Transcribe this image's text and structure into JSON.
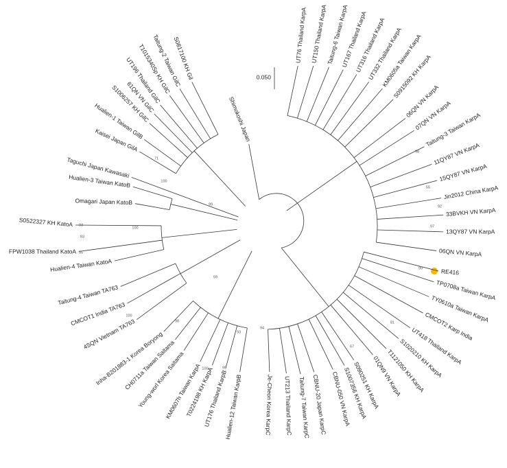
{
  "scale_bar": "0.050",
  "leaves": [
    "UT76 Thailand KarpA",
    "UT150 Thailand KarpA",
    "Taitung-6 Taiwan KarpA",
    "UT167 Thailand KarpA",
    "UT316 Thailand KarpA",
    "UT332 Thailand KarpA",
    "KM0605a Taiwan KarpA",
    "S0915092 KH KarpA",
    "06QN VN KarpA",
    "07QN VN KarpA",
    "Taitung-3 Taiwan KarpA",
    "11QY87 VN KarpA",
    "15QY87 VN KarpA",
    "Jin2012 China KarpA",
    "33BVKH VN KarpA",
    "13QY87 VN KarpA",
    "06QN VN KarpA",
    "RE416",
    "TP0708a Taiwan KarpA",
    "TY0610a Taiwan KarpA",
    "CMCOT2 Karp India",
    "UT418 Thailand KarpA",
    "S1020210 KH KarpA",
    "T1121050 KH KarpA",
    "01QN9 VN KarpA",
    "S090251 KH KarpA",
    "S1007356 KH KarpA",
    "CBNU-050 VN KarpA",
    "CBNU-20 Japan KarpC",
    "Taitung-7 Taiwan KarpC",
    "UT213 Thailand KarpC",
    "Je-Cheon Korea KarpC",
    "Hualien-12 Taiwan KarpB",
    "UT176 Thailand KarpB",
    "T0224198 KH KarpA",
    "KM0607h Taiwan KarpA",
    "Young-worl Korea Saitama",
    "CH0711a Taiwan Saitama",
    "Inha-B201883-1 Korea Boryong",
    "4SQN Vietnam TA763",
    "CMCOT1 India TA763",
    "Taitung-4 Taiwan TA763",
    "Hualien-4 Taiwan KatoA",
    "FPW1038 Thailand KatoA",
    "S0522327 KH KatoA",
    "Omagari Japan KatoB",
    "Hualien-3 Taiwan KatoB",
    "Taguchi Japan Kawasaki",
    "Kaisei Japan GilA",
    "Hualien-1 Taiwan GilB",
    "S1006257 KH GilC",
    "61QN VN GilC",
    "UT196 Thailand GilC",
    "T1015340Sp KH GilC",
    "Taitung-2 Taiwan GilC",
    "S0817100 KH Gil",
    "Shimokoshi Japan"
  ],
  "bootstrap": [
    99,
    100,
    100,
    71,
    93,
    83,
    55,
    100,
    98,
    59,
    93,
    94,
    100,
    99,
    99,
    97,
    92,
    55,
    98,
    67,
    81
  ]
}
